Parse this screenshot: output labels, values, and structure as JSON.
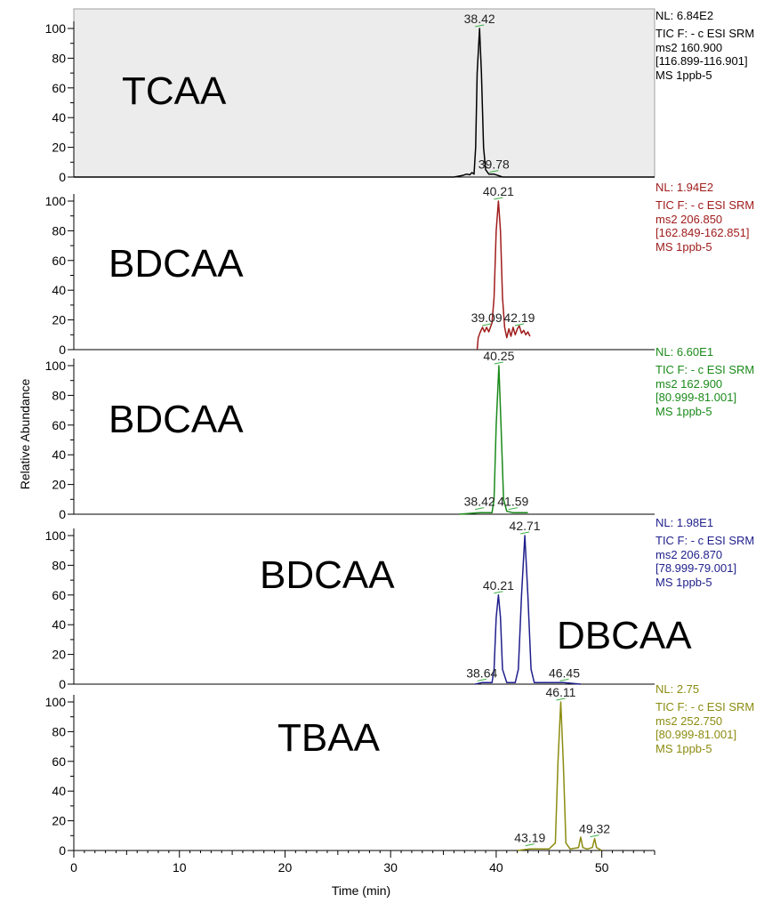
{
  "chart_data": {
    "type": "line",
    "xlabel": "Time (min)",
    "ylabel": "Relative Abundance",
    "xlim": [
      0,
      55
    ],
    "ylim": [
      0,
      100
    ],
    "x_ticks": [
      0,
      10,
      20,
      30,
      40,
      50
    ],
    "y_ticks": [
      0,
      20,
      40,
      60,
      80,
      100
    ],
    "panels": [
      {
        "label": "TCAA",
        "color": "#000000",
        "shaded": true,
        "info": [
          "NL: 6.84E2",
          "TIC F: - c ESI SRM",
          "ms2 160.900",
          "[116.899-116.901]",
          "MS 1ppb-5"
        ],
        "peaks": [
          {
            "label": "38.42",
            "x": 38.42,
            "y": 100
          },
          {
            "label": "39.78",
            "x": 39.78,
            "y": 2
          }
        ],
        "trace": [
          [
            0,
            0
          ],
          [
            36.0,
            0
          ],
          [
            36.8,
            1
          ],
          [
            37.2,
            2
          ],
          [
            37.5,
            1.5
          ],
          [
            37.7,
            3
          ],
          [
            37.9,
            2
          ],
          [
            38.05,
            20
          ],
          [
            38.2,
            70
          ],
          [
            38.42,
            100
          ],
          [
            38.6,
            70
          ],
          [
            38.8,
            20
          ],
          [
            39.0,
            5
          ],
          [
            39.3,
            2
          ],
          [
            39.78,
            2
          ],
          [
            40.2,
            1
          ],
          [
            40.6,
            0
          ],
          [
            55,
            0
          ]
        ]
      },
      {
        "label": "BDCAA",
        "color": "#a01c1c",
        "shaded": false,
        "info": [
          "NL: 1.94E2",
          "TIC F: - c ESI SRM",
          "ms2 206.850",
          "[162.849-162.851]",
          "MS 1ppb-5"
        ],
        "peaks": [
          {
            "label": "40.21",
            "x": 40.21,
            "y": 100
          },
          {
            "label": "39.09",
            "x": 39.09,
            "y": 15
          },
          {
            "label": "42.19",
            "x": 42.19,
            "y": 15
          }
        ],
        "trace": [
          [
            38.2,
            0
          ],
          [
            38.3,
            8
          ],
          [
            38.5,
            12
          ],
          [
            38.7,
            15
          ],
          [
            38.9,
            12
          ],
          [
            39.09,
            15
          ],
          [
            39.3,
            12
          ],
          [
            39.6,
            18
          ],
          [
            39.8,
            35
          ],
          [
            40.0,
            80
          ],
          [
            40.21,
            100
          ],
          [
            40.4,
            80
          ],
          [
            40.6,
            35
          ],
          [
            40.8,
            15
          ],
          [
            41.0,
            8
          ],
          [
            41.2,
            14
          ],
          [
            41.4,
            9
          ],
          [
            41.6,
            15
          ],
          [
            41.8,
            10
          ],
          [
            42.0,
            14
          ],
          [
            42.19,
            16
          ],
          [
            42.4,
            11
          ],
          [
            42.6,
            13
          ],
          [
            42.8,
            10
          ],
          [
            43.0,
            12
          ],
          [
            43.2,
            9
          ]
        ]
      },
      {
        "label": "BDCAA",
        "color": "#1a8a1a",
        "shaded": false,
        "info": [
          "NL: 6.60E1",
          "TIC F: - c ESI SRM",
          "ms2 162.900",
          "[80.999-81.001]",
          "MS 1ppb-5"
        ],
        "peaks": [
          {
            "label": "40.25",
            "x": 40.25,
            "y": 100
          },
          {
            "label": "38.42",
            "x": 38.42,
            "y": 2
          },
          {
            "label": "41.59",
            "x": 41.59,
            "y": 2
          }
        ],
        "trace": [
          [
            36.5,
            0
          ],
          [
            38.42,
            1
          ],
          [
            39.6,
            1
          ],
          [
            39.8,
            10
          ],
          [
            40.0,
            60
          ],
          [
            40.25,
            100
          ],
          [
            40.45,
            60
          ],
          [
            40.7,
            10
          ],
          [
            41.0,
            2
          ],
          [
            41.59,
            1
          ],
          [
            43.0,
            1
          ]
        ]
      },
      {
        "label": "BDCAA",
        "color": "#1f1f8c",
        "shaded": false,
        "info": [
          "NL: 1.98E1",
          "TIC F: - c ESI SRM",
          "ms2 206.870",
          "[78.999-79.001]",
          "MS 1ppb-5"
        ],
        "peaks": [
          {
            "label": "40.21",
            "x": 40.21,
            "y": 60
          },
          {
            "label": "42.71",
            "x": 42.71,
            "y": 100
          },
          {
            "label": "38.64",
            "x": 38.64,
            "y": 1
          },
          {
            "label": "46.45",
            "x": 46.45,
            "y": 1
          }
        ],
        "extra_label": "DBCAA",
        "trace": [
          [
            38.0,
            0
          ],
          [
            38.64,
            1
          ],
          [
            39.6,
            1
          ],
          [
            39.8,
            10
          ],
          [
            40.0,
            45
          ],
          [
            40.21,
            60
          ],
          [
            40.4,
            45
          ],
          [
            40.6,
            10
          ],
          [
            41.0,
            1
          ],
          [
            41.8,
            1
          ],
          [
            42.1,
            10
          ],
          [
            42.4,
            60
          ],
          [
            42.71,
            100
          ],
          [
            43.0,
            60
          ],
          [
            43.3,
            10
          ],
          [
            43.6,
            1
          ],
          [
            46.45,
            1
          ],
          [
            48.0,
            0
          ]
        ]
      },
      {
        "label": "TBAA",
        "color": "#8c8c10",
        "shaded": false,
        "info": [
          "NL: 2.75",
          "TIC F: - c ESI SRM",
          "ms2 252.750",
          "[80.999-81.001]",
          "MS 1ppb-5"
        ],
        "peaks": [
          {
            "label": "46.11",
            "x": 46.11,
            "y": 100
          },
          {
            "label": "43.19",
            "x": 43.19,
            "y": 2
          },
          {
            "label": "49.32",
            "x": 49.32,
            "y": 8
          }
        ],
        "trace": [
          [
            42.0,
            0
          ],
          [
            43.19,
            1
          ],
          [
            44.0,
            1
          ],
          [
            45.0,
            1
          ],
          [
            45.6,
            5
          ],
          [
            45.85,
            60
          ],
          [
            46.11,
            100
          ],
          [
            46.35,
            60
          ],
          [
            46.6,
            5
          ],
          [
            47.0,
            1
          ],
          [
            47.8,
            2
          ],
          [
            48.0,
            9
          ],
          [
            48.2,
            2
          ],
          [
            48.6,
            1
          ],
          [
            49.1,
            2
          ],
          [
            49.32,
            8
          ],
          [
            49.5,
            2
          ],
          [
            50.0,
            0
          ]
        ]
      }
    ]
  }
}
